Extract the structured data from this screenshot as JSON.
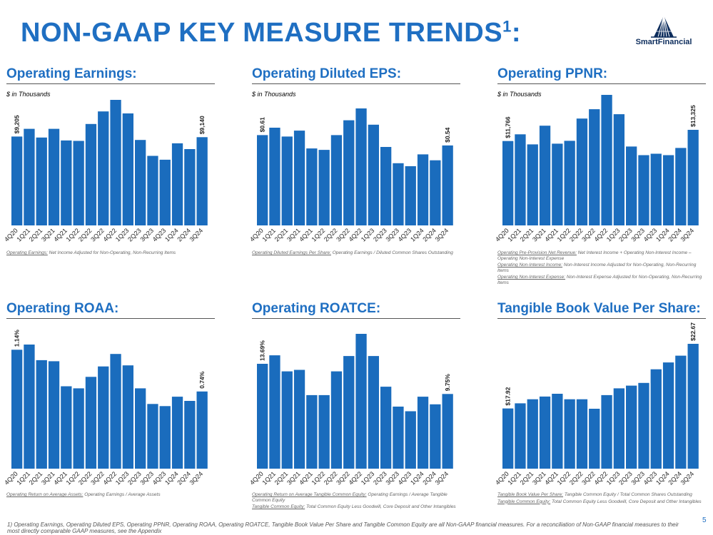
{
  "page": {
    "title_main": "NON-GAAP KEY MEASURE TRENDS",
    "title_sup": "1",
    "title_colon": ":",
    "logo_text": "SmartFinancial",
    "page_number": "5",
    "footnote": "1)  Operating Earnings, Operating Diluted EPS, Operating PPNR, Operating ROAA, Operating ROATCE, Tangible Book Value Per Share and Tangible Common Equity are all Non-GAAP financial measures. For a reconciliation of Non-GAAP financial measures to their most directly comparable GAAP measures, see the Appendix"
  },
  "colors": {
    "accent": "#1f6fc2",
    "bar": "#1a6cbd",
    "logo": "#0c2c5c"
  },
  "panels": [
    {
      "title": "Operating Earnings:",
      "unit_label": "$ in Thousands",
      "notes": [
        {
          "term": "Operating Earnings:",
          "text": " Net Income Adjusted for Non-Operating, Non-Recurring Items"
        }
      ]
    },
    {
      "title": "Operating Diluted EPS:",
      "unit_label": "$ in Thousands",
      "notes": [
        {
          "term": "Operating Diluted Earnings Per Share:",
          "text": " Operating Earnings / Diluted Common Shares Outstanding"
        }
      ]
    },
    {
      "title": "Operating PPNR:",
      "unit_label": "$ in Thousands",
      "notes": [
        {
          "term": "Operating Pre-Provision Net Revenue:",
          "text": " Net Interest Income + Operating Non-Interest Income – Operating Non-Interest Expense"
        },
        {
          "term": "Operating Non-Interest Income:",
          "text": " Non-Interest Income Adjusted for Non-Operating, Non-Recurring Items"
        },
        {
          "term": "Operating Non-Interest Expense:",
          "text": " Non-Interest Expense Adjusted for Non-Operating, Non-Recurring Items"
        }
      ]
    },
    {
      "title": "Operating ROAA:",
      "unit_label": "",
      "notes": [
        {
          "term": "Operating Return on Average Assets:",
          "text": " Operating Earnings / Average Assets"
        }
      ]
    },
    {
      "title": "Operating ROATCE:",
      "unit_label": "",
      "notes": [
        {
          "term": "Operating Return on Average Tangible Common Equity:",
          "text": " Operating Earnings / Average Tangible Common Equity"
        },
        {
          "term": "Tangible Common Equity:",
          "text": " Total Common Equity Less Goodwill, Core Deposit and Other Intangibles"
        }
      ]
    },
    {
      "title": "Tangible Book Value Per Share:",
      "unit_label": "",
      "notes": [
        {
          "term": "Tangible Book Value Per Share:",
          "text": " Tangible Common Equity / Total Common Shares Outstanding"
        },
        {
          "term": "Tangible Common Equity:",
          "text": " Total Common Equity Less Goodwill, Core Deposit and Other Intangibles"
        }
      ]
    }
  ],
  "chart_data": [
    {
      "type": "bar",
      "title": "Operating Earnings:",
      "categories": [
        "4Q20",
        "1Q21",
        "2Q21",
        "3Q21",
        "4Q21",
        "1Q22",
        "2Q22",
        "3Q22",
        "4Q22",
        "1Q23",
        "2Q23",
        "3Q23",
        "4Q23",
        "1Q24",
        "2Q24",
        "3Q24"
      ],
      "values": [
        9205,
        10000,
        9100,
        10000,
        8800,
        8750,
        10500,
        11800,
        13000,
        11600,
        8850,
        7200,
        6800,
        8500,
        7900,
        9140
      ],
      "data_labels": {
        "0": "$9,205",
        "15": "$9,140"
      },
      "ylim": [
        0,
        13500
      ]
    },
    {
      "type": "bar",
      "title": "Operating Diluted EPS:",
      "categories": [
        "4Q20",
        "1Q21",
        "2Q21",
        "3Q21",
        "4Q21",
        "1Q22",
        "2Q22",
        "3Q22",
        "4Q22",
        "1Q23",
        "2Q23",
        "3Q23",
        "4Q23",
        "1Q24",
        "2Q24",
        "3Q24"
      ],
      "values": [
        0.61,
        0.66,
        0.6,
        0.64,
        0.52,
        0.51,
        0.61,
        0.71,
        0.79,
        0.68,
        0.53,
        0.42,
        0.4,
        0.48,
        0.44,
        0.54
      ],
      "data_labels": {
        "0": "$0.61",
        "15": "$0.54"
      },
      "ylim": [
        0,
        0.82
      ]
    },
    {
      "type": "bar",
      "title": "Operating PPNR:",
      "categories": [
        "4Q20",
        "1Q21",
        "2Q21",
        "3Q21",
        "4Q21",
        "1Q22",
        "2Q22",
        "3Q22",
        "4Q22",
        "1Q23",
        "2Q23",
        "3Q23",
        "4Q23",
        "1Q24",
        "2Q24",
        "3Q24"
      ],
      "values": [
        11766,
        12700,
        11300,
        13900,
        11400,
        11800,
        14900,
        16200,
        18200,
        15500,
        11000,
        9800,
        10000,
        9800,
        10800,
        13325
      ],
      "data_labels": {
        "0": "$11,766",
        "15": "$13,325"
      },
      "ylim": [
        0,
        19000
      ]
    },
    {
      "type": "bar",
      "title": "Operating ROAA:",
      "categories": [
        "4Q20",
        "1Q21",
        "2Q21",
        "3Q21",
        "4Q21",
        "1Q22",
        "2Q22",
        "3Q22",
        "4Q22",
        "1Q23",
        "2Q23",
        "3Q23",
        "4Q23",
        "1Q24",
        "2Q24",
        "3Q24"
      ],
      "values": [
        1.14,
        1.19,
        1.04,
        1.03,
        0.79,
        0.77,
        0.88,
        0.98,
        1.1,
        0.99,
        0.77,
        0.62,
        0.6,
        0.69,
        0.65,
        0.74
      ],
      "data_labels": {
        "0": "1.14%",
        "15": "0.74%"
      },
      "ylim": [
        0,
        1.24
      ]
    },
    {
      "type": "bar",
      "title": "Operating ROATCE:",
      "categories": [
        "4Q20",
        "1Q21",
        "2Q21",
        "3Q21",
        "4Q21",
        "1Q22",
        "2Q22",
        "3Q22",
        "4Q22",
        "1Q23",
        "2Q23",
        "3Q23",
        "4Q23",
        "1Q24",
        "2Q24",
        "3Q24"
      ],
      "values": [
        13.69,
        14.8,
        12.7,
        12.9,
        9.6,
        9.6,
        12.7,
        14.7,
        17.6,
        14.7,
        10.7,
        8.1,
        7.5,
        9.4,
        8.4,
        9.75
      ],
      "data_labels": {
        "0": "13.69%",
        "15": "9.75%"
      },
      "ylim": [
        0,
        18.3
      ]
    },
    {
      "type": "bar",
      "title": "Tangible Book Value Per Share:",
      "categories": [
        "4Q20",
        "1Q21",
        "2Q21",
        "3Q21",
        "4Q21",
        "1Q22",
        "2Q22",
        "3Q22",
        "4Q22",
        "1Q23",
        "2Q23",
        "3Q23",
        "4Q23",
        "1Q24",
        "2Q24",
        "3Q24"
      ],
      "values": [
        17.92,
        18.3,
        18.6,
        18.8,
        19.0,
        18.6,
        18.6,
        17.9,
        18.9,
        19.4,
        19.6,
        19.8,
        20.8,
        21.3,
        21.8,
        22.67
      ],
      "data_labels": {
        "0": "$17.92",
        "15": "$22.67"
      },
      "ylim": [
        13.5,
        23.0
      ]
    }
  ]
}
